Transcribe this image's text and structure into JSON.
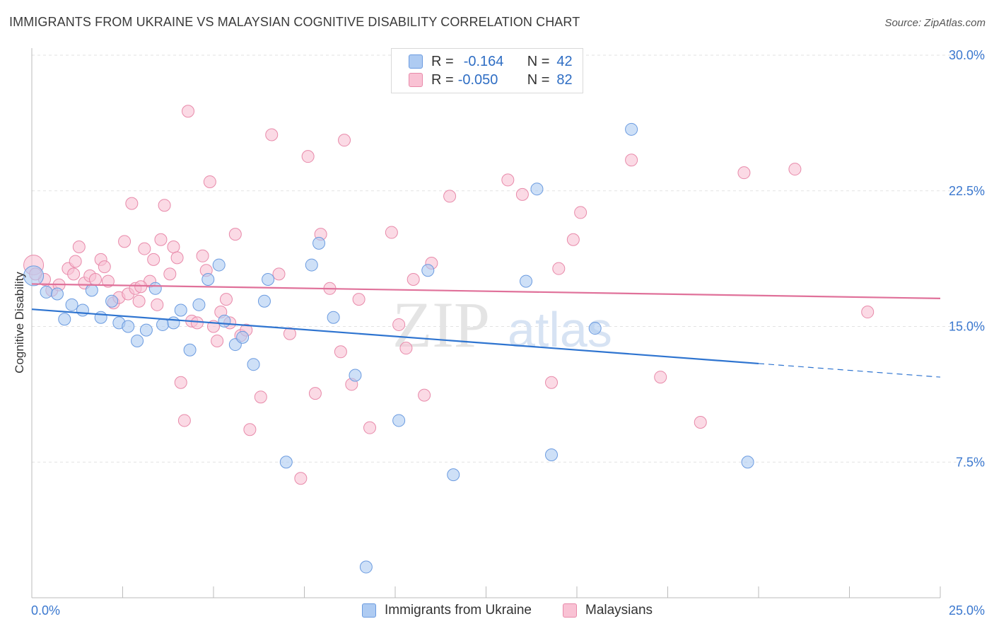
{
  "title": "IMMIGRANTS FROM UKRAINE VS MALAYSIAN COGNITIVE DISABILITY CORRELATION CHART",
  "source": "Source: ZipAtlas.com",
  "watermark": {
    "zip": "ZIP",
    "atlas": "atlas"
  },
  "legend": {
    "r_label": "R =",
    "n_label": "N =",
    "rows": [
      {
        "r": "-0.164",
        "n": "42",
        "color": "#aecbf2",
        "stroke": "#6b9be0"
      },
      {
        "r": "-0.050",
        "n": "82",
        "color": "#f9c2d4",
        "stroke": "#e88aaa"
      }
    ]
  },
  "bottom_legend": [
    {
      "label": "Immigrants from Ukraine",
      "color": "#aecbf2",
      "stroke": "#6b9be0"
    },
    {
      "label": "Malaysians",
      "color": "#f9c2d4",
      "stroke": "#e88aaa"
    }
  ],
  "chart_data": {
    "type": "scatter",
    "title": "IMMIGRANTS FROM UKRAINE VS MALAYSIAN COGNITIVE DISABILITY CORRELATION CHART",
    "xlabel": "",
    "ylabel": "Cognitive Disability",
    "xlim": [
      0,
      25
    ],
    "ylim": [
      0,
      30.0
    ],
    "x_ticks": [
      "0.0%",
      "25.0%"
    ],
    "y_ticks": [
      {
        "value": 7.5,
        "label": "7.5%"
      },
      {
        "value": 15.0,
        "label": "15.0%"
      },
      {
        "value": 22.5,
        "label": "22.5%"
      },
      {
        "value": 30.0,
        "label": "30.0%"
      }
    ],
    "grid": true,
    "legend_position": "top-center",
    "series": [
      {
        "name": "Immigrants from Ukraine",
        "color": "#aecbf2",
        "stroke": "#6b9be0",
        "line_color": "#2e74d0",
        "trend": {
          "x": [
            0,
            20
          ],
          "y": [
            15.95,
            12.95
          ],
          "dash_to_x": 25,
          "dash_to_y": 12.2
        },
        "points": [
          [
            0.05,
            17.8
          ],
          [
            0.4,
            16.9
          ],
          [
            0.7,
            16.8
          ],
          [
            0.9,
            15.4
          ],
          [
            1.1,
            16.2
          ],
          [
            1.4,
            15.9
          ],
          [
            1.65,
            17.0
          ],
          [
            1.9,
            15.5
          ],
          [
            2.2,
            16.4
          ],
          [
            2.4,
            15.2
          ],
          [
            2.65,
            15.0
          ],
          [
            2.9,
            14.2
          ],
          [
            3.15,
            14.8
          ],
          [
            3.4,
            17.1
          ],
          [
            3.6,
            15.1
          ],
          [
            3.9,
            15.2
          ],
          [
            4.1,
            15.9
          ],
          [
            4.35,
            13.7
          ],
          [
            4.6,
            16.2
          ],
          [
            4.85,
            17.6
          ],
          [
            5.15,
            18.4
          ],
          [
            5.3,
            15.3
          ],
          [
            5.6,
            14.0
          ],
          [
            5.8,
            14.4
          ],
          [
            6.1,
            12.9
          ],
          [
            6.4,
            16.4
          ],
          [
            6.5,
            17.6
          ],
          [
            7.0,
            7.5
          ],
          [
            7.7,
            18.4
          ],
          [
            7.9,
            19.6
          ],
          [
            8.3,
            15.5
          ],
          [
            8.9,
            12.3
          ],
          [
            9.2,
            1.7
          ],
          [
            10.1,
            9.8
          ],
          [
            10.9,
            18.1
          ],
          [
            11.6,
            6.8
          ],
          [
            13.6,
            17.5
          ],
          [
            13.9,
            22.6
          ],
          [
            14.3,
            7.9
          ],
          [
            15.5,
            14.9
          ],
          [
            16.5,
            25.9
          ],
          [
            19.7,
            7.5
          ]
        ]
      },
      {
        "name": "Malaysians",
        "color": "#f9c2d4",
        "stroke": "#e88aaa",
        "line_color": "#e0719a",
        "trend": {
          "x": [
            0,
            25
          ],
          "y": [
            17.35,
            16.55
          ]
        },
        "points": [
          [
            0.05,
            18.4
          ],
          [
            0.35,
            17.6
          ],
          [
            0.55,
            17.0
          ],
          [
            0.75,
            17.3
          ],
          [
            1.0,
            18.2
          ],
          [
            1.15,
            17.9
          ],
          [
            1.3,
            19.4
          ],
          [
            1.45,
            17.4
          ],
          [
            1.6,
            17.8
          ],
          [
            1.75,
            17.6
          ],
          [
            1.9,
            18.7
          ],
          [
            2.0,
            18.3
          ],
          [
            2.1,
            17.5
          ],
          [
            2.25,
            16.3
          ],
          [
            2.4,
            16.6
          ],
          [
            2.55,
            19.7
          ],
          [
            2.65,
            16.8
          ],
          [
            2.75,
            21.8
          ],
          [
            2.85,
            17.1
          ],
          [
            2.95,
            16.4
          ],
          [
            3.1,
            19.3
          ],
          [
            3.25,
            17.5
          ],
          [
            3.35,
            18.7
          ],
          [
            3.45,
            16.2
          ],
          [
            3.55,
            19.8
          ],
          [
            3.65,
            21.7
          ],
          [
            3.8,
            17.9
          ],
          [
            3.9,
            19.4
          ],
          [
            4.0,
            18.8
          ],
          [
            4.1,
            11.9
          ],
          [
            4.2,
            9.8
          ],
          [
            4.3,
            26.9
          ],
          [
            4.4,
            15.3
          ],
          [
            4.55,
            15.2
          ],
          [
            4.7,
            18.9
          ],
          [
            4.8,
            18.1
          ],
          [
            4.9,
            23.0
          ],
          [
            5.0,
            15.0
          ],
          [
            5.1,
            14.2
          ],
          [
            5.2,
            15.8
          ],
          [
            5.35,
            16.5
          ],
          [
            5.45,
            15.2
          ],
          [
            5.6,
            20.1
          ],
          [
            5.75,
            14.5
          ],
          [
            5.9,
            14.8
          ],
          [
            6.0,
            9.3
          ],
          [
            6.3,
            11.1
          ],
          [
            6.6,
            25.6
          ],
          [
            6.8,
            17.9
          ],
          [
            7.1,
            14.6
          ],
          [
            7.4,
            6.6
          ],
          [
            7.6,
            24.4
          ],
          [
            7.8,
            11.3
          ],
          [
            7.95,
            20.1
          ],
          [
            8.2,
            17.1
          ],
          [
            8.5,
            13.6
          ],
          [
            8.6,
            25.3
          ],
          [
            8.8,
            11.8
          ],
          [
            9.3,
            9.4
          ],
          [
            9.9,
            20.2
          ],
          [
            10.1,
            15.1
          ],
          [
            10.3,
            13.8
          ],
          [
            10.5,
            17.6
          ],
          [
            10.8,
            11.2
          ],
          [
            11.0,
            18.5
          ],
          [
            11.5,
            22.2
          ],
          [
            13.1,
            23.1
          ],
          [
            13.5,
            22.3
          ],
          [
            14.3,
            11.9
          ],
          [
            14.5,
            18.2
          ],
          [
            14.9,
            19.8
          ],
          [
            15.1,
            21.3
          ],
          [
            16.5,
            24.2
          ],
          [
            17.3,
            12.2
          ],
          [
            18.4,
            9.7
          ],
          [
            19.6,
            23.5
          ],
          [
            21.0,
            23.7
          ],
          [
            23.0,
            15.8
          ],
          [
            0.1,
            17.9
          ],
          [
            1.2,
            18.6
          ],
          [
            3.0,
            17.2
          ],
          [
            9.0,
            16.5
          ]
        ]
      }
    ]
  }
}
